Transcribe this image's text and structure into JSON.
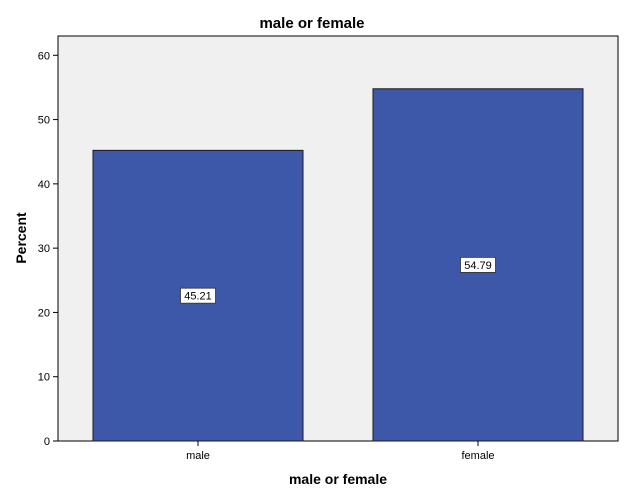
{
  "chart_data": {
    "type": "bar",
    "title": "male or female",
    "xlabel": "male or female",
    "ylabel": "Percent",
    "categories": [
      "male",
      "female"
    ],
    "values": [
      45.21,
      54.79
    ],
    "data_labels": [
      "45.21",
      "54.79"
    ],
    "ylim": [
      0,
      63
    ],
    "yticks": [
      0,
      10,
      20,
      30,
      40,
      50,
      60
    ],
    "grid": false,
    "legend": "none",
    "colors": {
      "bar_fill": "#3d58a9",
      "bar_stroke": "#1a1a1a",
      "plot_background": "#f0f0f0",
      "frame": "#000000"
    }
  }
}
